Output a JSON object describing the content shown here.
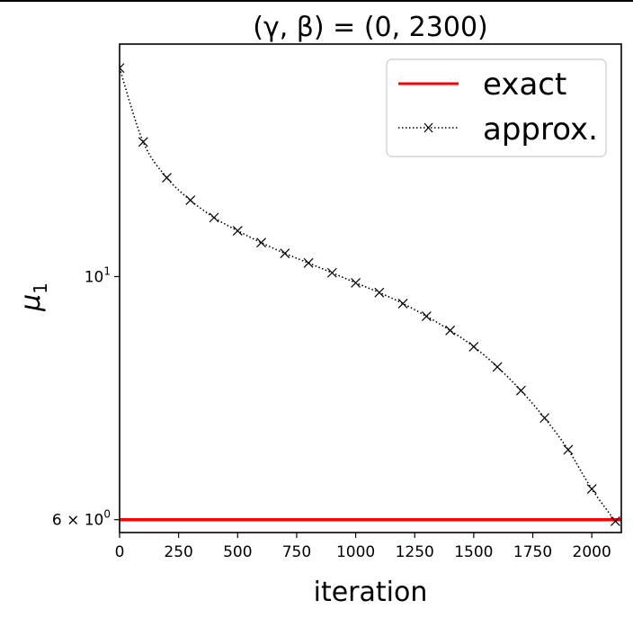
{
  "chart_data": {
    "type": "line",
    "title": "(γ, β) = (0, 2300)",
    "xlabel": "iteration",
    "ylabel": "μ",
    "ylabel_subscript": "1",
    "yscale": "log",
    "xlim": [
      0,
      2125
    ],
    "ylim": [
      5.84,
      16.3
    ],
    "grid": false,
    "legend_position": "upper right",
    "x_ticks": [
      0,
      250,
      500,
      750,
      1000,
      1250,
      1500,
      1750,
      2000
    ],
    "x_tick_labels": [
      "0",
      "250",
      "500",
      "750",
      "1000",
      "1250",
      "1500",
      "1750",
      "2000"
    ],
    "y_ticks": [
      {
        "value": 10,
        "base": "10",
        "exp": "1",
        "prefix": ""
      },
      {
        "value": 6,
        "base": "10",
        "exp": "0",
        "prefix": "6 × "
      }
    ],
    "series": [
      {
        "name": "exact",
        "style": "solid",
        "color": "#ff0000",
        "x": [
          0,
          2125
        ],
        "values": [
          6.0,
          6.0
        ]
      },
      {
        "name": "approx.",
        "style": "dotted",
        "marker": "x",
        "color": "#000000",
        "x": [
          0,
          100,
          200,
          300,
          400,
          500,
          600,
          700,
          800,
          900,
          1000,
          1100,
          1200,
          1300,
          1400,
          1500,
          1600,
          1700,
          1800,
          1900,
          2000,
          2100
        ],
        "values": [
          15.5,
          13.27,
          12.31,
          11.74,
          11.32,
          11.01,
          10.74,
          10.5,
          10.29,
          10.08,
          9.87,
          9.67,
          9.45,
          9.2,
          8.93,
          8.63,
          8.27,
          7.87,
          7.43,
          6.95,
          6.4,
          5.98
        ]
      }
    ]
  },
  "legend": {
    "items": [
      {
        "label": "exact"
      },
      {
        "label": "approx."
      }
    ]
  }
}
